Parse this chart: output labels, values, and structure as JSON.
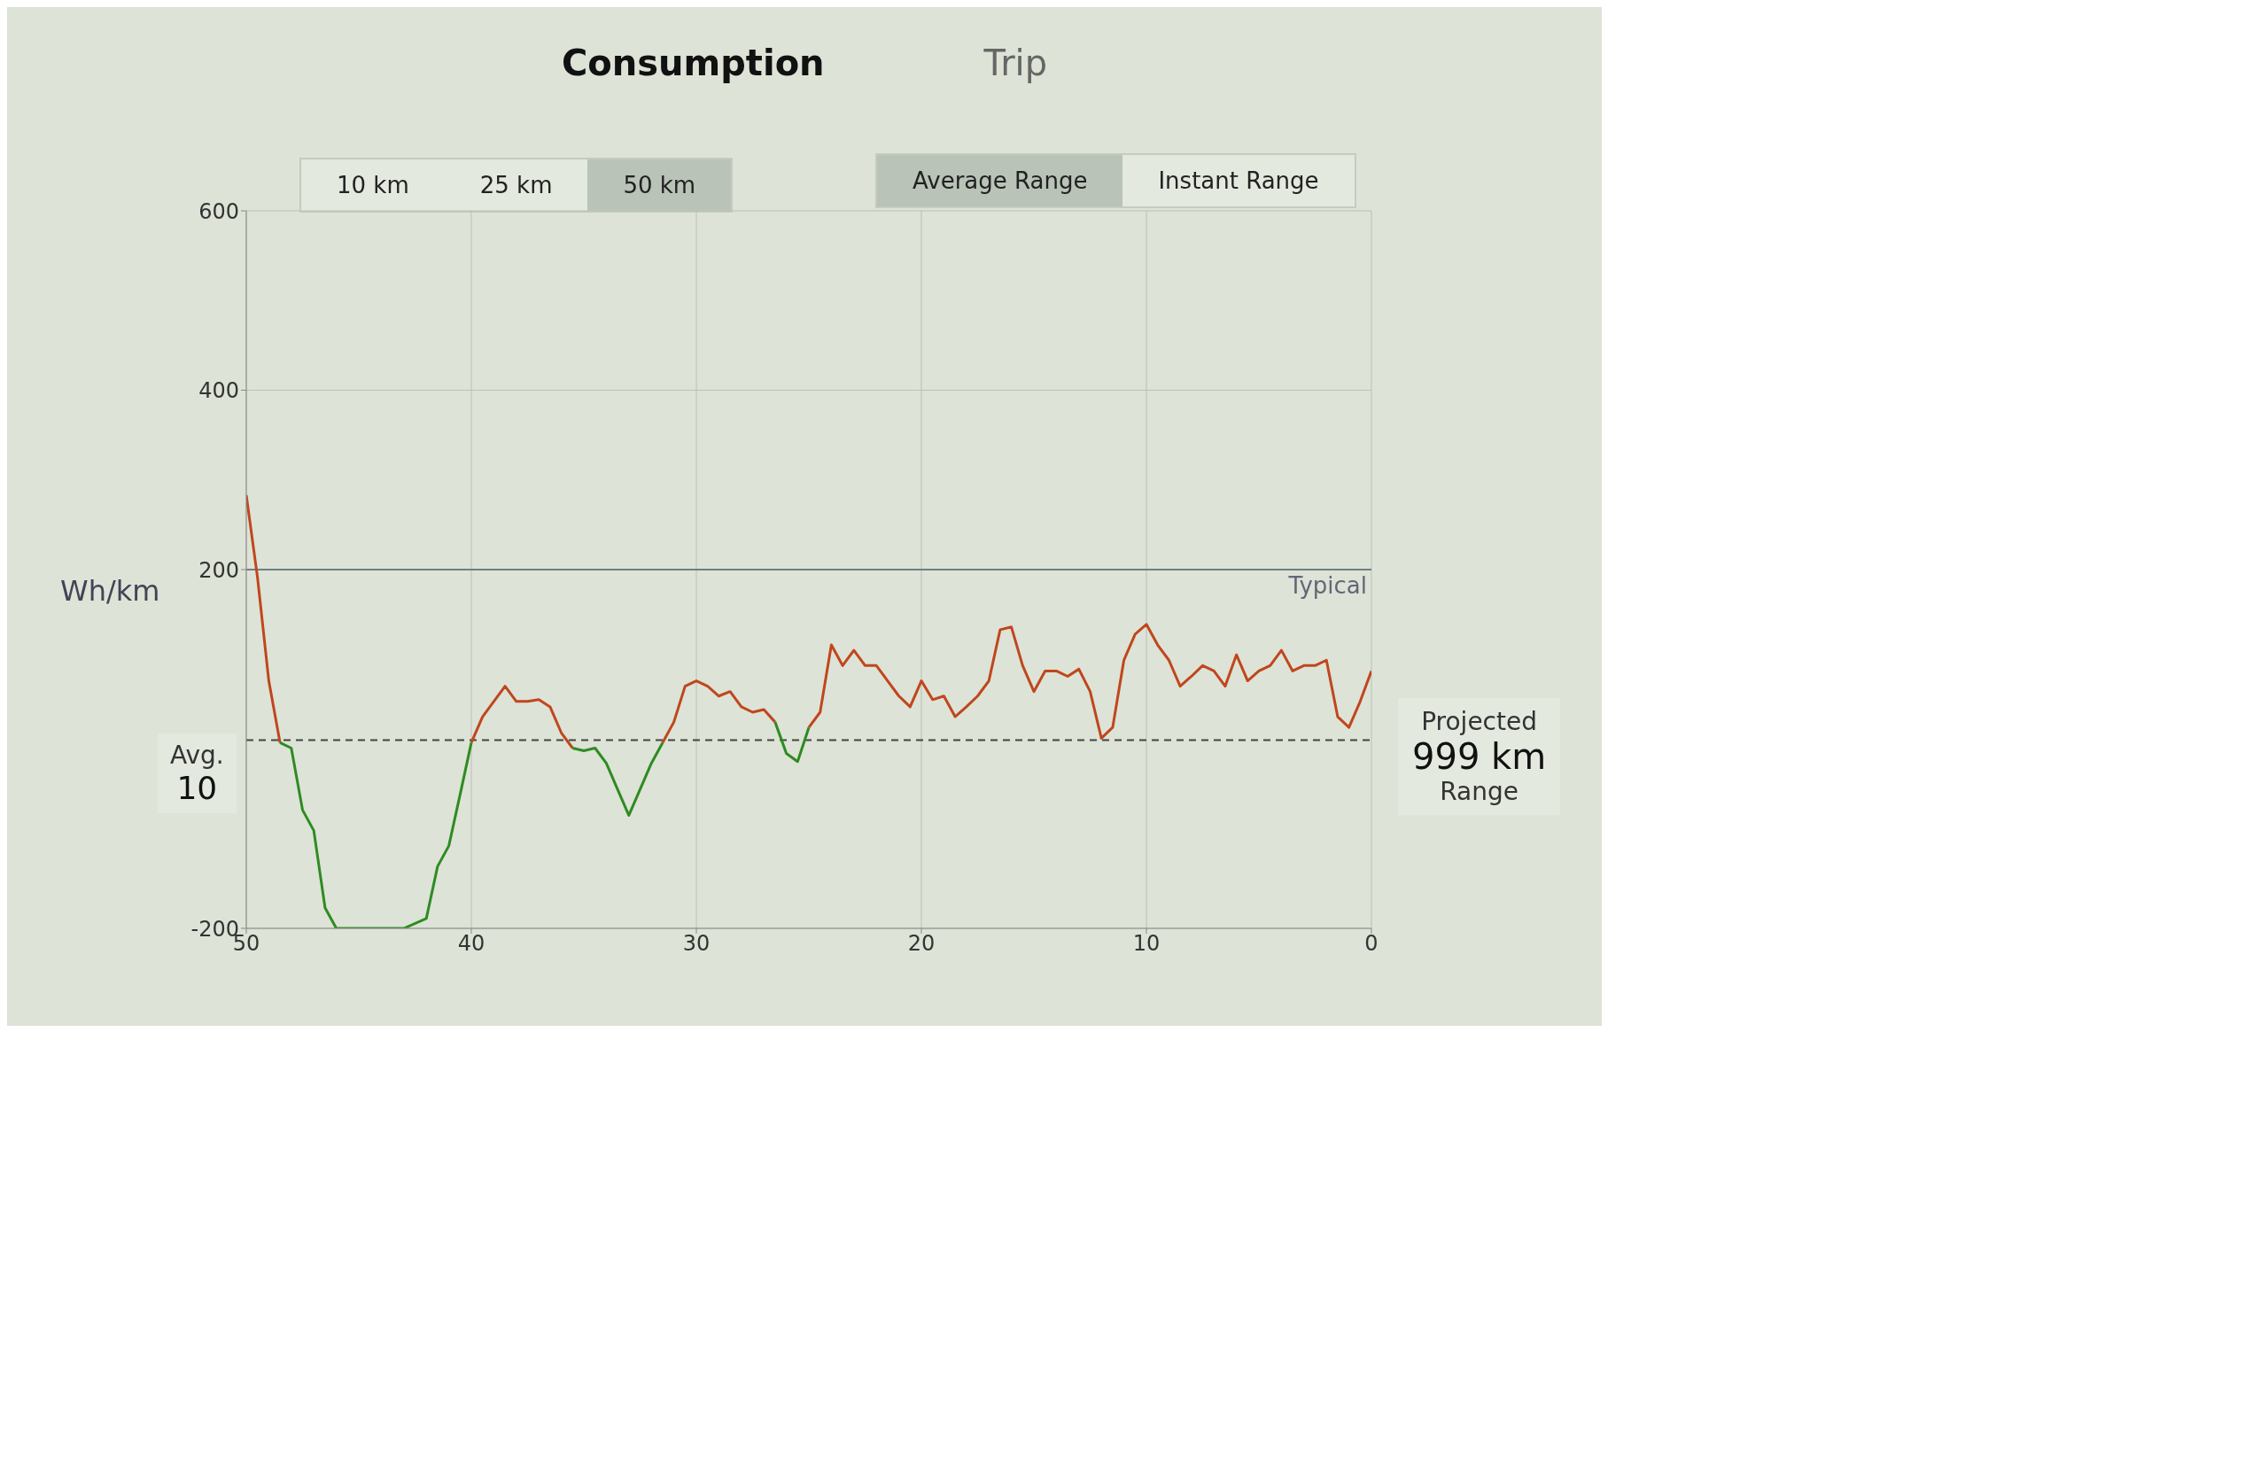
{
  "chart_data": {
    "type": "line",
    "title": "Consumption",
    "ylabel": "Wh/km",
    "annotations": [
      "Trip",
      "10 km",
      "25 km",
      "50 km",
      "Average Range",
      "Instant Range",
      "Projected",
      "999 km",
      "Range",
      "10"
    ],
    "x": [
      50,
      49.5,
      49,
      48.5,
      48,
      47.5,
      47,
      46.5,
      46,
      45,
      44,
      43,
      42,
      41.5,
      41,
      40.5,
      40,
      39.5,
      39,
      38.5,
      38,
      37.5,
      37,
      36.5,
      36,
      35.5,
      35,
      34.5,
      34,
      33.5,
      33,
      32.5,
      32,
      31.5,
      31,
      30.5,
      30,
      29.5,
      29,
      28.5,
      28,
      27.5,
      27,
      26.5,
      26,
      25.5,
      25,
      24.5,
      24,
      23.5,
      23,
      22.5,
      22,
      21.5,
      21,
      20.5,
      20,
      19.5,
      19,
      18.5,
      18,
      17.5,
      17,
      16.5,
      16,
      15.5,
      15,
      14.5,
      14,
      13.5,
      13,
      12.5,
      12,
      11.5,
      11,
      10.5,
      10,
      9.5,
      9,
      8.5,
      8,
      7.5,
      7,
      6.5,
      6,
      5.5,
      5,
      4.5,
      4,
      3.5,
      3,
      2.5,
      2,
      1.5,
      1,
      0.5,
      0
    ],
    "series": [
      {
        "color": "#c0461e",
        "values": [
          283,
          191,
          76,
          7,
          null,
          null,
          null,
          null,
          null,
          null,
          null,
          null,
          null,
          null,
          null,
          null,
          7,
          36,
          53,
          70,
          53,
          53,
          55,
          47,
          18,
          1,
          null,
          null,
          null,
          null,
          null,
          null,
          null,
          7,
          30,
          70,
          76,
          70,
          59,
          64,
          47,
          41,
          44,
          30,
          null,
          null,
          24,
          41,
          116,
          93,
          110,
          93,
          93,
          76,
          59,
          47,
          76,
          55,
          59,
          36,
          47,
          59,
          76,
          133,
          136,
          93,
          64,
          87,
          87,
          81,
          89,
          64,
          12,
          24,
          99,
          128,
          139,
          116,
          99,
          70,
          81,
          93,
          87,
          70,
          105,
          76,
          87,
          93,
          110,
          87,
          93,
          93,
          99,
          36,
          24,
          53,
          87
        ]
      },
      {
        "color": "#2e8b22",
        "values": [
          null,
          null,
          null,
          7,
          1,
          -68,
          -91,
          -177,
          -200,
          -200,
          -200,
          -200,
          -189,
          -131,
          -108,
          -51,
          7,
          null,
          null,
          null,
          null,
          null,
          null,
          null,
          null,
          1,
          -2,
          1,
          -16,
          -45,
          -74,
          -45,
          -16,
          7,
          null,
          null,
          null,
          null,
          null,
          null,
          null,
          null,
          null,
          30,
          -5,
          -14,
          24,
          null,
          null,
          null,
          null,
          null,
          null,
          null,
          null,
          null,
          null,
          null,
          null,
          null,
          null,
          null,
          null,
          null,
          null,
          null,
          null,
          null,
          null,
          null,
          null,
          null,
          null,
          null,
          null,
          null,
          null,
          null,
          null,
          null,
          null,
          null,
          null,
          null,
          null,
          null,
          null,
          null,
          null,
          null,
          null,
          null,
          null,
          null,
          null,
          null,
          null
        ]
      }
    ],
    "xlim": [
      50,
      0
    ],
    "xticks": [
      50,
      40,
      30,
      20,
      10,
      0
    ],
    "ylim": [
      -200,
      600
    ],
    "yticks": [
      -200,
      200,
      400,
      600
    ],
    "ref_lines": [
      {
        "axis": "y",
        "value": 200,
        "label": "Typical",
        "color": "#6e7f86",
        "line_style": "solid"
      },
      {
        "axis": "y",
        "value": 10,
        "label": "Avg.",
        "color": "#444444",
        "line_style": "dashed"
      }
    ],
    "grid": true,
    "marker": "none",
    "line_style": "solid"
  }
}
